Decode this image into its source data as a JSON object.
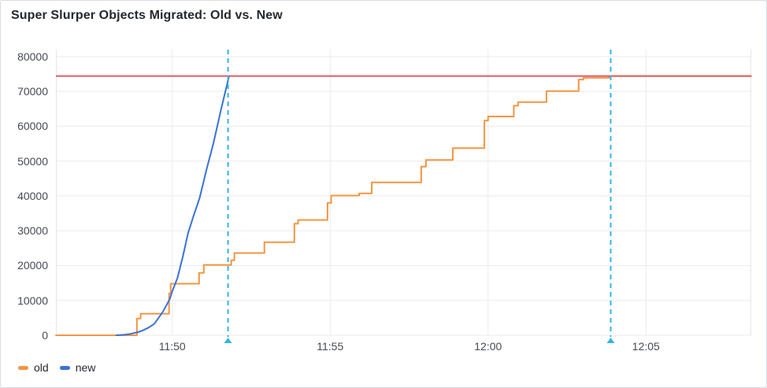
{
  "panel": {
    "title": "Super Slurper Objects Migrated: Old vs. New"
  },
  "colors": {
    "old": "#F59542",
    "new": "#3872D9",
    "threshold": "#DE5B66",
    "annotation": "#33B5E5",
    "grid": "#e9ebee",
    "axis_text": "#464B51",
    "title_text": "#24292E",
    "panel_bg": "#FFFFFF",
    "panel_border": "#D8DCE1"
  },
  "legend": {
    "items": [
      {
        "label": "old",
        "color": "#F59542"
      },
      {
        "label": "new",
        "color": "#3872D9"
      }
    ]
  },
  "chart_data": {
    "type": "line",
    "title": "Super Slurper Objects Migrated: Old vs. New",
    "xlabel": "",
    "ylabel": "",
    "x_type": "time",
    "x_range": [
      "11:46:19",
      "12:08:20"
    ],
    "ylim": [
      0,
      82000
    ],
    "x_ticks": [
      "11:50",
      "11:55",
      "12:00",
      "12:05"
    ],
    "y_ticks": [
      0,
      10000,
      20000,
      30000,
      40000,
      50000,
      60000,
      70000,
      80000
    ],
    "grid": true,
    "legend_position": "bottom-left",
    "threshold_line": {
      "value": 74400,
      "color": "#DE5B66"
    },
    "annotations": [
      {
        "time": "11:51:46",
        "color": "#33B5E5"
      },
      {
        "time": "12:03:53",
        "color": "#33B5E5"
      }
    ],
    "series": [
      {
        "name": "old",
        "color": "#F59542",
        "style": "step",
        "points": [
          [
            "11:46:19",
            0
          ],
          [
            "11:48:53",
            4800
          ],
          [
            "11:49:00",
            6200
          ],
          [
            "11:49:54",
            12000
          ],
          [
            "11:49:57",
            14800
          ],
          [
            "11:50:51",
            17900
          ],
          [
            "11:51:00",
            20200
          ],
          [
            "11:51:52",
            21500
          ],
          [
            "11:51:58",
            23600
          ],
          [
            "11:52:55",
            26700
          ],
          [
            "11:53:52",
            32000
          ],
          [
            "11:53:59",
            33100
          ],
          [
            "11:54:55",
            38000
          ],
          [
            "11:55:02",
            40100
          ],
          [
            "11:55:55",
            40700
          ],
          [
            "11:56:19",
            43900
          ],
          [
            "11:57:53",
            48400
          ],
          [
            "11:58:02",
            50300
          ],
          [
            "11:58:53",
            53700
          ],
          [
            "11:59:53",
            61600
          ],
          [
            "12:00:00",
            62800
          ],
          [
            "12:00:49",
            65900
          ],
          [
            "12:00:57",
            66900
          ],
          [
            "12:01:51",
            70100
          ],
          [
            "12:02:52",
            73400
          ],
          [
            "12:03:01",
            73900
          ],
          [
            "12:03:50",
            74400
          ],
          [
            "12:08:20",
            74400
          ]
        ]
      },
      {
        "name": "new",
        "color": "#3872D9",
        "style": "smooth",
        "points": [
          [
            "11:48:14",
            0
          ],
          [
            "11:48:30",
            150
          ],
          [
            "11:48:41",
            400
          ],
          [
            "11:48:55",
            900
          ],
          [
            "11:49:03",
            1300
          ],
          [
            "11:49:15",
            2200
          ],
          [
            "11:49:26",
            3300
          ],
          [
            "11:49:42",
            6700
          ],
          [
            "11:49:55",
            10300
          ],
          [
            "11:50:00",
            12600
          ],
          [
            "11:50:10",
            16500
          ],
          [
            "11:50:20",
            22500
          ],
          [
            "11:50:30",
            29300
          ],
          [
            "11:50:41",
            34500
          ],
          [
            "11:50:52",
            39400
          ],
          [
            "11:51:05",
            47500
          ],
          [
            "11:51:18",
            55000
          ],
          [
            "11:51:33",
            65000
          ],
          [
            "11:51:48",
            74400
          ]
        ]
      }
    ]
  }
}
